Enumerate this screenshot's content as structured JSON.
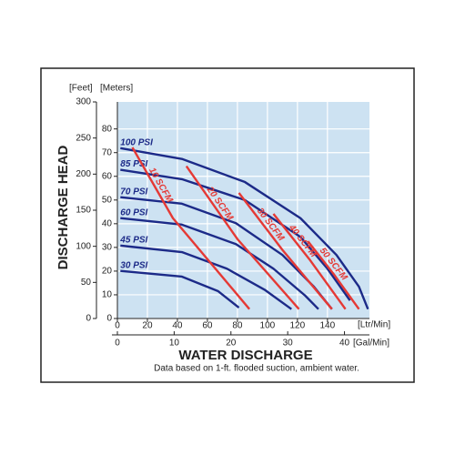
{
  "chart_data": {
    "type": "line",
    "y_label_left": "[Feet]",
    "y2_label": "[Meters]",
    "y_title": "DISCHARGE HEAD",
    "x_label": "[Ltr/Min]",
    "x2_label": "[Gal/Min]",
    "x_title": "WATER DISCHARGE",
    "note": "Data based on 1-ft. flooded suction, ambient water.",
    "xlim": [
      0,
      168
    ],
    "xticks": [
      0,
      20,
      40,
      60,
      80,
      100,
      120,
      140
    ],
    "x2lim": [
      0,
      44.4
    ],
    "x2ticks": [
      0,
      10,
      20,
      30,
      40
    ],
    "ylim": [
      0,
      300
    ],
    "yticks": [
      0,
      50,
      100,
      150,
      200,
      250,
      300
    ],
    "y2lim": [
      0,
      91.4
    ],
    "y2ticks": [
      0,
      10,
      20,
      30,
      40,
      50,
      60,
      70,
      80
    ],
    "grid": true,
    "background": "#cde2f2",
    "series": [
      {
        "name": "100 PSI",
        "color": "#1c2a88",
        "x": [
          2,
          43,
          85,
          122,
          146,
          161,
          167
        ],
        "values": [
          236,
          221,
          189,
          139,
          88,
          44,
          13
        ]
      },
      {
        "name": "85 PSI",
        "color": "#1c2a88",
        "x": [
          2,
          43,
          85,
          122,
          140,
          155
        ],
        "values": [
          206,
          193,
          164,
          113,
          69,
          25
        ]
      },
      {
        "name": "70 PSI",
        "color": "#1c2a88",
        "x": [
          2,
          43,
          79,
          110,
          131,
          143
        ],
        "values": [
          168,
          159,
          132,
          88,
          44,
          13
        ]
      },
      {
        "name": "60 PSI",
        "color": "#1c2a88",
        "x": [
          2,
          43,
          79,
          104,
          125,
          134
        ],
        "values": [
          139,
          130,
          103,
          69,
          32,
          13
        ]
      },
      {
        "name": "45 PSI",
        "color": "#1c2a88",
        "x": [
          2,
          43,
          73,
          98,
          116
        ],
        "values": [
          101,
          92,
          69,
          40,
          13
        ]
      },
      {
        "name": "30 PSI",
        "color": "#1c2a88",
        "x": [
          2,
          43,
          67,
          81
        ],
        "values": [
          66,
          58,
          38,
          15
        ]
      },
      {
        "name": "10 SCFM",
        "color": "#e53935",
        "x": [
          10,
          37,
          88
        ],
        "values": [
          237,
          139,
          13
        ]
      },
      {
        "name": "20 SCFM",
        "color": "#e53935",
        "x": [
          46,
          80,
          121
        ],
        "values": [
          211,
          110,
          13
        ]
      },
      {
        "name": "30 SCFM",
        "color": "#e53935",
        "x": [
          81,
          110,
          143
        ],
        "values": [
          174,
          95,
          13
        ]
      },
      {
        "name": "40 SCFM",
        "color": "#e53935",
        "x": [
          104,
          128,
          152
        ],
        "values": [
          145,
          82,
          13
        ]
      },
      {
        "name": "50 SCFM",
        "color": "#e53935",
        "x": [
          127,
          144,
          161
        ],
        "values": [
          107,
          62,
          13
        ]
      }
    ]
  }
}
